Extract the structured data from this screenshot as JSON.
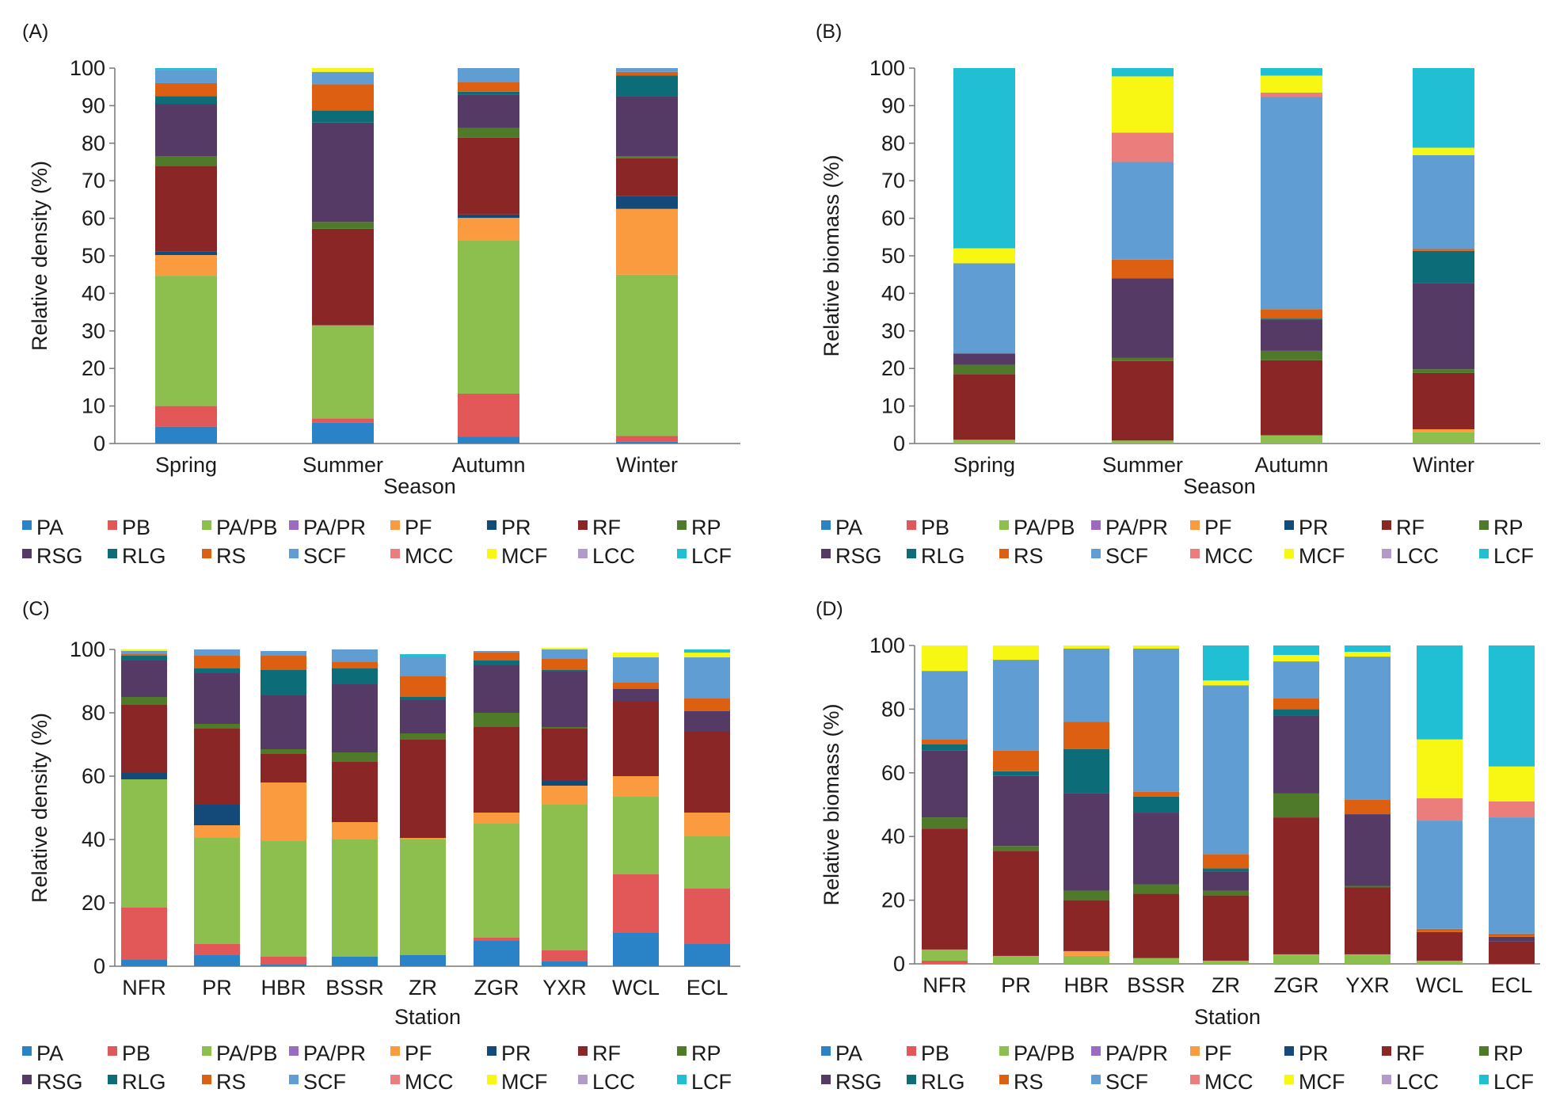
{
  "legend_labels": [
    "PA",
    "PB",
    "PA/PB",
    "PA/PR",
    "PF",
    "PR",
    "RF",
    "RP",
    "RSG",
    "RLG",
    "RS",
    "SCF",
    "MCC",
    "MCF",
    "LCC",
    "LCF"
  ],
  "colors": {
    "PA": "#2a83c7",
    "PB": "#e25757",
    "PA/PB": "#8dbf4f",
    "PA/PR": "#9a6bbf",
    "PF": "#fb9b3f",
    "PR": "#144a7a",
    "RF": "#8b2626",
    "RP": "#4e7a2a",
    "RSG": "#553a66",
    "RLG": "#0c6d78",
    "RS": "#dd6012",
    "SCF": "#5f9dd2",
    "MCC": "#ec7d7d",
    "MCF": "#f7f713",
    "LCC": "#b49acb",
    "LCF": "#21bfd3"
  },
  "chart_data": [
    {
      "id": "A",
      "type": "bar",
      "stacked": true,
      "panel_label": "(A)",
      "xlabel": "Season",
      "ylabel": "Relative density (%)",
      "ylim": [
        0,
        100
      ],
      "yticks": [
        0,
        10,
        20,
        30,
        40,
        50,
        60,
        70,
        80,
        90,
        100
      ],
      "categories": [
        "Spring",
        "Summer",
        "Autumn",
        "Winter"
      ],
      "series": [
        {
          "name": "PA",
          "values": [
            4.5,
            5.5,
            1.8,
            0.5
          ]
        },
        {
          "name": "PB",
          "values": [
            5.5,
            1.2,
            11.5,
            1.5
          ]
        },
        {
          "name": "PA/PB",
          "values": [
            34.7,
            24.8,
            40.8,
            43.0
          ]
        },
        {
          "name": "PA/PR",
          "values": [
            0,
            0,
            0,
            0
          ]
        },
        {
          "name": "PF",
          "values": [
            5.5,
            0,
            6.0,
            17.5
          ]
        },
        {
          "name": "PR",
          "values": [
            1.0,
            0,
            0.9,
            3.5
          ]
        },
        {
          "name": "RF",
          "values": [
            22.8,
            25.7,
            20.5,
            10.0
          ]
        },
        {
          "name": "RP",
          "values": [
            2.5,
            1.8,
            2.5,
            0.5
          ]
        },
        {
          "name": "RSG",
          "values": [
            14.0,
            26.5,
            9.0,
            16.0
          ]
        },
        {
          "name": "RLG",
          "values": [
            2.0,
            3.2,
            0.7,
            5.5
          ]
        },
        {
          "name": "RS",
          "values": [
            3.5,
            7.0,
            2.5,
            1.0
          ]
        },
        {
          "name": "SCF",
          "values": [
            3.5,
            3.3,
            3.8,
            1.0
          ]
        },
        {
          "name": "MCC",
          "values": [
            0,
            0,
            0,
            0
          ]
        },
        {
          "name": "MCF",
          "values": [
            0,
            1.0,
            0,
            0
          ]
        },
        {
          "name": "LCC",
          "values": [
            0,
            0,
            0,
            0
          ]
        },
        {
          "name": "LCF",
          "values": [
            0.5,
            0,
            0,
            0
          ]
        }
      ]
    },
    {
      "id": "B",
      "type": "bar",
      "stacked": true,
      "panel_label": "(B)",
      "xlabel": "Season",
      "ylabel": "Relative biomass (%)",
      "ylim": [
        0,
        100
      ],
      "yticks": [
        0,
        10,
        20,
        30,
        40,
        50,
        60,
        70,
        80,
        90,
        100
      ],
      "categories": [
        "Spring",
        "Summer",
        "Autumn",
        "Winter"
      ],
      "series": [
        {
          "name": "PA",
          "values": [
            0,
            0,
            0,
            0
          ]
        },
        {
          "name": "PB",
          "values": [
            0,
            0,
            0,
            0
          ]
        },
        {
          "name": "PA/PB",
          "values": [
            1.0,
            0.8,
            2.2,
            3.0
          ]
        },
        {
          "name": "PA/PR",
          "values": [
            0,
            0,
            0,
            0
          ]
        },
        {
          "name": "PF",
          "values": [
            0,
            0,
            0,
            0.8
          ]
        },
        {
          "name": "PR",
          "values": [
            0,
            0,
            0,
            0
          ]
        },
        {
          "name": "RF",
          "values": [
            17.5,
            21.2,
            20.0,
            15.0
          ]
        },
        {
          "name": "RP",
          "values": [
            2.5,
            0.8,
            2.5,
            1.0
          ]
        },
        {
          "name": "RSG",
          "values": [
            3.0,
            21.2,
            8.3,
            23.0
          ]
        },
        {
          "name": "RLG",
          "values": [
            0,
            0,
            0.3,
            8.5
          ]
        },
        {
          "name": "RS",
          "values": [
            0,
            5.0,
            2.5,
            0.5
          ]
        },
        {
          "name": "SCF",
          "values": [
            24.0,
            26.0,
            56.5,
            25.0
          ]
        },
        {
          "name": "MCC",
          "values": [
            0,
            7.8,
            1.2,
            0
          ]
        },
        {
          "name": "MCF",
          "values": [
            4.0,
            15.0,
            4.5,
            2.0
          ]
        },
        {
          "name": "LCC",
          "values": [
            0,
            0,
            0,
            0
          ]
        },
        {
          "name": "LCF",
          "values": [
            48.0,
            2.2,
            2.0,
            21.2
          ]
        }
      ]
    },
    {
      "id": "C",
      "type": "bar",
      "stacked": true,
      "panel_label": "(C)",
      "xlabel": "Station",
      "ylabel": "Relative density (%)",
      "ylim": [
        0,
        100
      ],
      "yticks": [
        0,
        20,
        40,
        60,
        80,
        100
      ],
      "categories": [
        "NFR",
        "PR",
        "HBR",
        "BSSR",
        "ZR",
        "ZGR",
        "YXR",
        "WCL",
        "ECL"
      ],
      "series": [
        {
          "name": "PA",
          "values": [
            2.0,
            3.5,
            0.5,
            3.0,
            3.5,
            8.0,
            1.5,
            10.5,
            7.0
          ]
        },
        {
          "name": "PB",
          "values": [
            16.5,
            3.5,
            2.5,
            0,
            0,
            1.0,
            3.5,
            18.5,
            17.5
          ]
        },
        {
          "name": "PA/PB",
          "values": [
            40.5,
            33.5,
            36.5,
            37.0,
            36.5,
            36.0,
            46.0,
            24.5,
            16.5
          ]
        },
        {
          "name": "PA/PR",
          "values": [
            0,
            0,
            0,
            0,
            0,
            0,
            0,
            0,
            0
          ]
        },
        {
          "name": "PF",
          "values": [
            0,
            4.0,
            18.5,
            5.5,
            0.5,
            3.5,
            6.0,
            6.5,
            7.5
          ]
        },
        {
          "name": "PR",
          "values": [
            2.0,
            6.5,
            0,
            0,
            0,
            0,
            1.5,
            0,
            0
          ]
        },
        {
          "name": "RF",
          "values": [
            21.5,
            24.0,
            9.0,
            19.0,
            31.0,
            27.0,
            16.5,
            23.5,
            25.5
          ]
        },
        {
          "name": "RP",
          "values": [
            2.5,
            1.5,
            1.5,
            3.0,
            2.0,
            4.5,
            0.5,
            0,
            0
          ]
        },
        {
          "name": "RSG",
          "values": [
            11.5,
            16.0,
            17.0,
            21.5,
            10.5,
            15.0,
            17.5,
            4.0,
            6.5
          ]
        },
        {
          "name": "RLG",
          "values": [
            1.5,
            1.5,
            8.0,
            5.0,
            1.0,
            1.5,
            0.5,
            0,
            0
          ]
        },
        {
          "name": "RS",
          "values": [
            0.5,
            4.0,
            4.5,
            2.0,
            6.5,
            2.5,
            3.5,
            2.0,
            4.0
          ]
        },
        {
          "name": "SCF",
          "values": [
            1.0,
            2.0,
            1.5,
            4.0,
            6.0,
            0.5,
            3.0,
            8.0,
            13.0
          ]
        },
        {
          "name": "MCC",
          "values": [
            0,
            0,
            0,
            0,
            0,
            0,
            0,
            0,
            0
          ]
        },
        {
          "name": "MCF",
          "values": [
            0.5,
            0,
            0,
            0,
            0,
            0,
            0.5,
            1.5,
            1.5
          ]
        },
        {
          "name": "LCC",
          "values": [
            0,
            0,
            0,
            0,
            0,
            0,
            0,
            0,
            0
          ]
        },
        {
          "name": "LCF",
          "values": [
            0,
            0,
            0,
            0,
            1.0,
            0,
            0,
            0,
            1.0
          ]
        }
      ]
    },
    {
      "id": "D",
      "type": "bar",
      "stacked": true,
      "panel_label": "(D)",
      "xlabel": "Station",
      "ylabel": "Relative biomass (%)",
      "ylim": [
        0,
        100
      ],
      "yticks": [
        0,
        20,
        40,
        60,
        80,
        100
      ],
      "categories": [
        "NFR",
        "PR",
        "HBR",
        "BSSR",
        "ZR",
        "ZGR",
        "YXR",
        "WCL",
        "ECL"
      ],
      "series": [
        {
          "name": "PA",
          "values": [
            0,
            0,
            0,
            0,
            0,
            0,
            0,
            0,
            0
          ]
        },
        {
          "name": "PB",
          "values": [
            1.0,
            0,
            0,
            0,
            0,
            0,
            0,
            0,
            0
          ]
        },
        {
          "name": "PA/PB",
          "values": [
            3.5,
            2.5,
            2.5,
            1.8,
            1.0,
            3.0,
            3.0,
            1.0,
            0
          ]
        },
        {
          "name": "PA/PR",
          "values": [
            0,
            0,
            0,
            0,
            0,
            0,
            0,
            0,
            0
          ]
        },
        {
          "name": "PF",
          "values": [
            0,
            0,
            1.5,
            0,
            0,
            0,
            0,
            0,
            0
          ]
        },
        {
          "name": "PR",
          "values": [
            0,
            0,
            0,
            0,
            0,
            0,
            0,
            0,
            0
          ]
        },
        {
          "name": "RF",
          "values": [
            38.0,
            33.0,
            16.0,
            20.2,
            20.5,
            43.0,
            21.0,
            9.0,
            7.0
          ]
        },
        {
          "name": "RP",
          "values": [
            3.5,
            1.5,
            3.0,
            3.0,
            1.5,
            7.5,
            0.5,
            0,
            0
          ]
        },
        {
          "name": "RSG",
          "values": [
            21.0,
            22.0,
            30.5,
            22.5,
            6.0,
            24.5,
            22.5,
            0,
            1.5
          ]
        },
        {
          "name": "RLG",
          "values": [
            2.0,
            1.5,
            14.0,
            5.0,
            1.0,
            2.0,
            0,
            0,
            0
          ]
        },
        {
          "name": "RS",
          "values": [
            1.5,
            6.5,
            8.5,
            1.5,
            4.5,
            3.5,
            4.5,
            1.0,
            1.0
          ]
        },
        {
          "name": "SCF",
          "values": [
            21.5,
            28.5,
            23.0,
            45.0,
            53.0,
            11.5,
            45.0,
            34.0,
            36.5
          ]
        },
        {
          "name": "MCC",
          "values": [
            0,
            0,
            0,
            0,
            0,
            0,
            0,
            7.0,
            5.0
          ]
        },
        {
          "name": "MCF",
          "values": [
            8.0,
            4.5,
            1.0,
            1.0,
            1.5,
            2.0,
            1.5,
            18.5,
            11.0
          ]
        },
        {
          "name": "LCC",
          "values": [
            0,
            0,
            0,
            0,
            0,
            0,
            0,
            0,
            0
          ]
        },
        {
          "name": "LCF",
          "values": [
            0,
            0,
            0,
            0,
            11.0,
            3.0,
            2.0,
            29.5,
            38.0
          ]
        }
      ]
    }
  ]
}
